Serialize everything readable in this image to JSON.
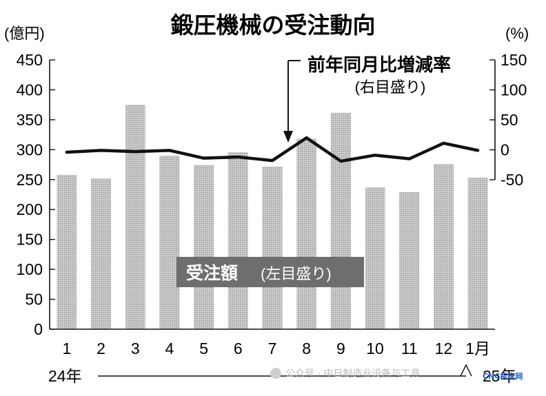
{
  "chart_data": {
    "type": "bar",
    "title": "鍛圧機械の受注動向",
    "left_unit": "(億円)",
    "right_unit": "(%)",
    "categories": [
      "1",
      "2",
      "3",
      "4",
      "5",
      "6",
      "7",
      "8",
      "9",
      "10",
      "11",
      "12",
      "1月"
    ],
    "year_labels": {
      "start": "24年",
      "end": "25年"
    },
    "ylim_left": [
      0,
      450
    ],
    "ylim_right": [
      -50,
      150
    ],
    "left_ticks": [
      "450",
      "400",
      "350",
      "300",
      "250",
      "200",
      "150",
      "100",
      "50",
      "0"
    ],
    "right_ticks": [
      "150",
      "100",
      "50",
      "0",
      "-50"
    ],
    "series": [
      {
        "name": "受注額",
        "annotation": "(左目盛り)",
        "axis": "left",
        "kind": "bar",
        "color": "#bdbdbd",
        "values": [
          258,
          252,
          375,
          290,
          274,
          296,
          272,
          318,
          362,
          237,
          229,
          276,
          253
        ]
      },
      {
        "name": "前年同月比増減率",
        "annotation": "(右目盛り)",
        "axis": "right",
        "kind": "line",
        "color": "#111111",
        "values": [
          -4,
          -1,
          -3,
          -1,
          -14,
          -12,
          -18,
          20,
          -19,
          -9,
          -15,
          11,
          -1
        ]
      }
    ],
    "grid": false
  },
  "watermark": {
    "text": "公众号 · 中日制造业设备与工具",
    "brand": "CNC机床网"
  }
}
